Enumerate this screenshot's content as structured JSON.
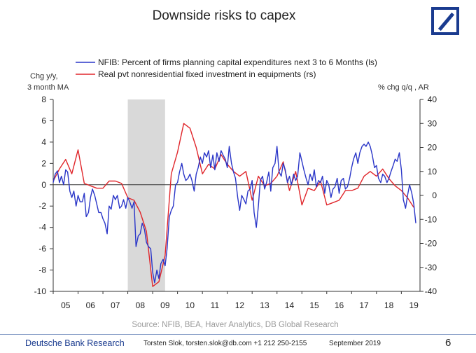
{
  "title": "Downside risks to capex",
  "source": "Source: NFIB, BEA, Haver Analytics, DB Global Research",
  "footer": {
    "brand": "Deutsche Bank Research",
    "contact": "Torsten Slok, torsten.slok@db.com +1 212 250-2155",
    "date": "September 2019",
    "page": "6"
  },
  "chart_data": {
    "type": "line",
    "left_axis_label": [
      "Chg y/y,",
      "3 month MA"
    ],
    "right_axis_label": "% chg q/q , AR",
    "left_ticks": [
      "8",
      "6",
      "4",
      "2",
      "0",
      "-2",
      "-4",
      "-6",
      "-8",
      "-10"
    ],
    "right_ticks": [
      "40",
      "30",
      "20",
      "10",
      "0",
      "-10",
      "-20",
      "-30",
      "-40"
    ],
    "x_ticks": [
      "05",
      "06",
      "07",
      "08",
      "09",
      "10",
      "11",
      "12",
      "13",
      "14",
      "15",
      "16",
      "17",
      "18",
      "19"
    ],
    "left_ylim": [
      -10,
      8
    ],
    "right_ylim": [
      -40,
      40
    ],
    "x_range": [
      2005.0,
      2019.75
    ],
    "recession": [
      2008.0,
      2009.5
    ],
    "colors": {
      "nfib": "#2a36c8",
      "equip": "#e0262b",
      "recession": "#d9d9d9"
    },
    "series": [
      {
        "name": "NFIB: Percent of firms planning capital expenditures next 3 to 6 Months (ls)",
        "axis": "left",
        "x": [
          2005.0,
          2005.08,
          2005.17,
          2005.25,
          2005.33,
          2005.42,
          2005.5,
          2005.58,
          2005.67,
          2005.75,
          2005.83,
          2005.92,
          2006.0,
          2006.08,
          2006.17,
          2006.25,
          2006.33,
          2006.42,
          2006.5,
          2006.58,
          2006.67,
          2006.75,
          2006.83,
          2006.92,
          2007.0,
          2007.08,
          2007.17,
          2007.25,
          2007.33,
          2007.42,
          2007.5,
          2007.58,
          2007.67,
          2007.75,
          2007.83,
          2007.92,
          2008.0,
          2008.08,
          2008.17,
          2008.25,
          2008.33,
          2008.42,
          2008.5,
          2008.58,
          2008.67,
          2008.75,
          2008.83,
          2008.92,
          2009.0,
          2009.08,
          2009.17,
          2009.25,
          2009.33,
          2009.42,
          2009.5,
          2009.58,
          2009.67,
          2009.75,
          2009.83,
          2009.92,
          2010.0,
          2010.08,
          2010.17,
          2010.25,
          2010.33,
          2010.42,
          2010.5,
          2010.58,
          2010.67,
          2010.75,
          2010.83,
          2010.92,
          2011.0,
          2011.08,
          2011.17,
          2011.25,
          2011.33,
          2011.42,
          2011.5,
          2011.58,
          2011.67,
          2011.75,
          2011.83,
          2011.92,
          2012.0,
          2012.08,
          2012.17,
          2012.25,
          2012.33,
          2012.42,
          2012.5,
          2012.58,
          2012.67,
          2012.75,
          2012.83,
          2012.92,
          2013.0,
          2013.08,
          2013.17,
          2013.25,
          2013.33,
          2013.42,
          2013.5,
          2013.58,
          2013.67,
          2013.75,
          2013.83,
          2013.92,
          2014.0,
          2014.08,
          2014.17,
          2014.25,
          2014.33,
          2014.42,
          2014.5,
          2014.58,
          2014.67,
          2014.75,
          2014.83,
          2014.92,
          2015.0,
          2015.08,
          2015.17,
          2015.25,
          2015.33,
          2015.42,
          2015.5,
          2015.58,
          2015.67,
          2015.75,
          2015.83,
          2015.92,
          2016.0,
          2016.08,
          2016.17,
          2016.25,
          2016.33,
          2016.42,
          2016.5,
          2016.58,
          2016.67,
          2016.75,
          2016.83,
          2016.92,
          2017.0,
          2017.08,
          2017.17,
          2017.25,
          2017.33,
          2017.42,
          2017.5,
          2017.58,
          2017.67,
          2017.75,
          2017.83,
          2017.92,
          2018.0,
          2018.08,
          2018.17,
          2018.25,
          2018.33,
          2018.42,
          2018.5,
          2018.58,
          2018.67,
          2018.75,
          2018.83,
          2018.92,
          2019.0,
          2019.08,
          2019.17,
          2019.25,
          2019.33,
          2019.42,
          2019.5,
          2019.58
        ],
        "values": [
          0.2,
          1.0,
          1.3,
          0.2,
          0.8,
          0.0,
          1.4,
          1.2,
          -0.6,
          -1.2,
          -0.6,
          -2.0,
          -1.0,
          -1.6,
          -1.6,
          -0.8,
          -3.0,
          -2.6,
          -1.2,
          -0.4,
          -1.0,
          -1.8,
          -2.6,
          -2.6,
          -3.2,
          -3.6,
          -4.6,
          -2.0,
          -2.3,
          -1.0,
          -1.4,
          -1.0,
          -2.2,
          -2.0,
          -1.4,
          -2.2,
          -1.2,
          -1.6,
          -2.2,
          -1.6,
          -5.8,
          -4.8,
          -4.6,
          -3.6,
          -4.2,
          -5.4,
          -5.8,
          -6.0,
          -8.2,
          -9.2,
          -8.0,
          -8.8,
          -7.4,
          -7.0,
          -7.6,
          -6.0,
          -3.0,
          -2.4,
          -2.0,
          0.0,
          0.2,
          1.2,
          2.0,
          1.0,
          0.4,
          0.6,
          1.0,
          0.4,
          -0.6,
          1.0,
          1.6,
          2.6,
          2.0,
          3.0,
          2.6,
          3.2,
          1.6,
          2.8,
          1.4,
          3.0,
          2.2,
          3.2,
          2.8,
          2.4,
          1.6,
          3.6,
          2.0,
          1.2,
          0.6,
          -1.2,
          -2.4,
          -1.0,
          -1.4,
          -1.8,
          -0.6,
          -0.4,
          0.4,
          -2.6,
          -4.0,
          -2.0,
          0.4,
          0.8,
          -0.4,
          0.2,
          1.2,
          -0.6,
          1.6,
          2.0,
          3.6,
          1.2,
          0.8,
          2.0,
          1.4,
          0.2,
          0.8,
          0.0,
          1.0,
          0.4,
          0.8,
          3.0,
          2.2,
          1.4,
          0.6,
          0.0,
          1.0,
          0.4,
          1.4,
          -0.2,
          0.4,
          0.2,
          0.8,
          -0.8,
          0.4,
          0.0,
          -1.2,
          -0.4,
          -0.2,
          0.6,
          -0.8,
          0.4,
          0.6,
          -0.4,
          -0.2,
          0.6,
          1.6,
          2.4,
          3.0,
          2.0,
          3.0,
          3.6,
          3.8,
          3.6,
          4.0,
          3.6,
          2.8,
          1.6,
          1.8,
          0.6,
          0.2,
          1.0,
          0.8,
          0.2,
          0.6,
          1.2,
          1.8,
          2.4,
          2.2,
          3.0,
          1.4,
          -1.4,
          -2.2,
          -1.0,
          0.0,
          -0.8,
          -1.8,
          -3.6
        ]
      },
      {
        "name": "Real pvt nonresidential fixed investment in equipments (rs)",
        "axis": "right",
        "x": [
          2005.0,
          2005.25,
          2005.5,
          2005.75,
          2006.0,
          2006.25,
          2006.5,
          2006.75,
          2007.0,
          2007.25,
          2007.5,
          2007.75,
          2008.0,
          2008.25,
          2008.5,
          2008.75,
          2009.0,
          2009.25,
          2009.5,
          2009.75,
          2010.0,
          2010.25,
          2010.5,
          2010.75,
          2011.0,
          2011.25,
          2011.5,
          2011.75,
          2012.0,
          2012.25,
          2012.5,
          2012.75,
          2013.0,
          2013.25,
          2013.5,
          2013.75,
          2014.0,
          2014.25,
          2014.5,
          2014.75,
          2015.0,
          2015.25,
          2015.5,
          2015.75,
          2016.0,
          2016.25,
          2016.5,
          2016.75,
          2017.0,
          2017.25,
          2017.5,
          2017.75,
          2018.0,
          2018.25,
          2018.5,
          2018.75,
          2019.0,
          2019.25,
          2019.5
        ],
        "values": [
          6,
          11,
          15,
          9,
          19,
          5,
          4,
          3,
          3,
          6,
          6,
          5,
          -1,
          -2,
          -7,
          -15,
          -38,
          -36,
          -25,
          9,
          18,
          30,
          28,
          20,
          9,
          13,
          11,
          17,
          13,
          10,
          8,
          10,
          -2,
          8,
          4,
          5,
          8,
          14,
          2,
          10,
          -4,
          3,
          2,
          6,
          -4,
          -3,
          -2,
          2,
          2,
          3,
          8,
          10,
          8,
          11,
          7,
          4,
          2,
          -1,
          -5
        ]
      }
    ]
  }
}
